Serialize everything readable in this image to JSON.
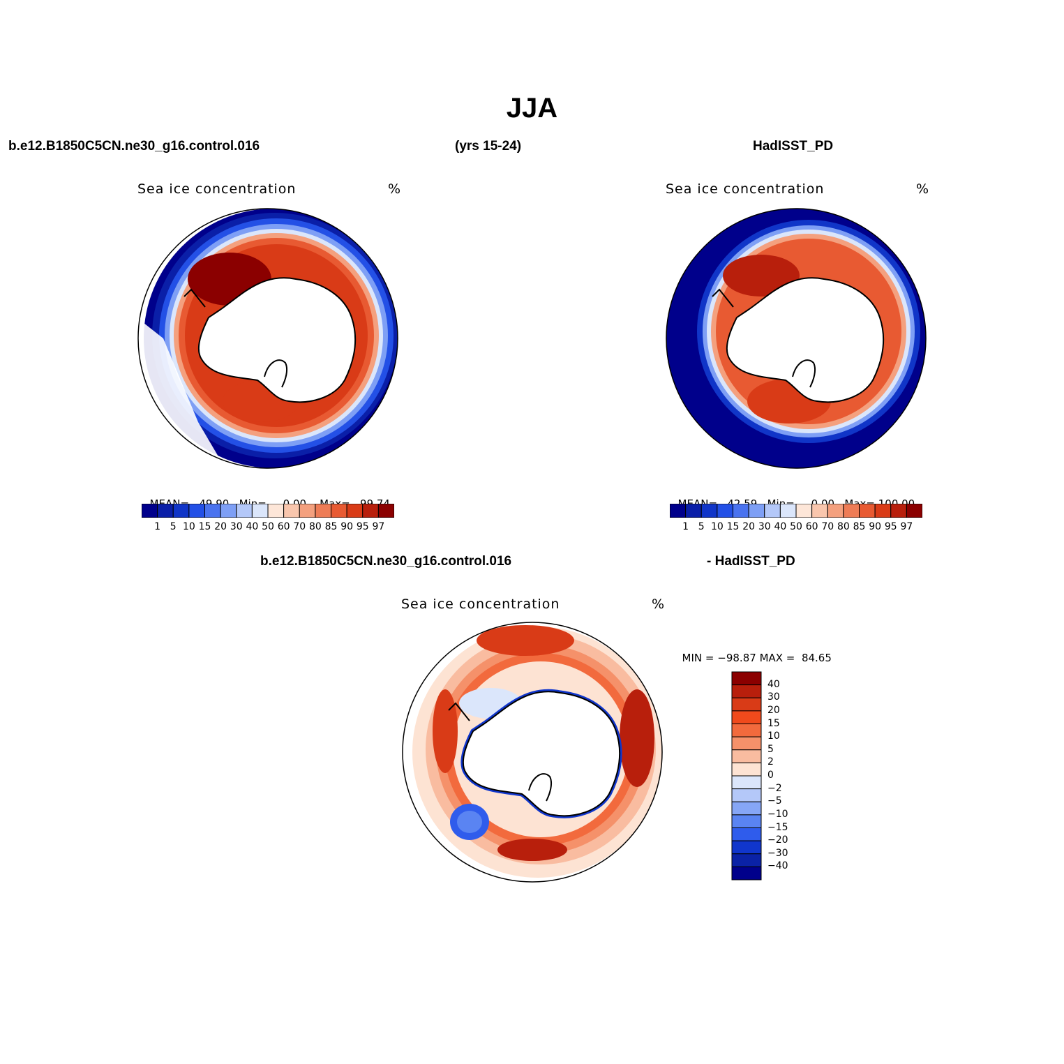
{
  "figure": {
    "title": "JJA",
    "case_name": "b.e12.B1850C5CN.ne30_g16.control.016",
    "years": "(yrs 15-24)",
    "obs_name": "HadISST_PD",
    "diff_case": "b.e12.B1850C5CN.ne30_g16.control.016",
    "diff_obs": "- HadISST_PD"
  },
  "panels": [
    {
      "variable": "Sea ice concentration",
      "units": "%",
      "mean_label": "MEAN=",
      "mean": "49.90",
      "min_label": "Min=",
      "min": "0.00",
      "max_label": "Max=",
      "max": "99.74"
    },
    {
      "variable": "Sea ice concentration",
      "units": "%",
      "mean_label": "MEAN=",
      "mean": "42.59",
      "min_label": "Min=",
      "min": "0.00",
      "max_label": "Max=",
      "max": "100.00"
    },
    {
      "variable": "Sea ice concentration",
      "units": "%",
      "min_label": "MIN =",
      "min": "−98.87",
      "max_label": "MAX =",
      "max": "84.65"
    }
  ],
  "colorbar_main": {
    "labels": [
      "1",
      "5",
      "10",
      "15",
      "20",
      "30",
      "40",
      "50",
      "60",
      "70",
      "80",
      "85",
      "90",
      "95",
      "97"
    ],
    "colors": [
      "#00008b",
      "#0a1fa8",
      "#1035c8",
      "#2350e6",
      "#4a73ef",
      "#7e9ff5",
      "#b4c8f9",
      "#dbe6fb",
      "#fde6d8",
      "#f9c6ad",
      "#f4a07e",
      "#ee7c56",
      "#e85a32",
      "#d93b17",
      "#b81f0c",
      "#8b0000"
    ]
  },
  "colorbar_diff": {
    "labels": [
      "40",
      "30",
      "20",
      "15",
      "10",
      "5",
      "2",
      "0",
      "−2",
      "−5",
      "−10",
      "−15",
      "−20",
      "−30",
      "−40"
    ],
    "colors": [
      "#8b0000",
      "#b81f0c",
      "#d93b17",
      "#f04a1c",
      "#f26a3d",
      "#f5916a",
      "#f9bca0",
      "#fde3d3",
      "#dbe6fb",
      "#b4c8f9",
      "#86a6f6",
      "#5a84f2",
      "#2f5cec",
      "#1036cc",
      "#0a22a6",
      "#00008b"
    ]
  },
  "chart_data": [
    {
      "type": "heatmap",
      "title": "Sea ice concentration",
      "units": "%",
      "projection": "south polar stereographic",
      "stats": {
        "mean": 49.9,
        "min": 0.0,
        "max": 99.74
      },
      "levels": [
        1,
        5,
        10,
        15,
        20,
        30,
        40,
        50,
        60,
        70,
        80,
        85,
        90,
        95,
        97
      ]
    },
    {
      "type": "heatmap",
      "title": "Sea ice concentration",
      "units": "%",
      "projection": "south polar stereographic",
      "stats": {
        "mean": 42.59,
        "min": 0.0,
        "max": 100.0
      },
      "levels": [
        1,
        5,
        10,
        15,
        20,
        30,
        40,
        50,
        60,
        70,
        80,
        85,
        90,
        95,
        97
      ]
    },
    {
      "type": "heatmap",
      "title": "Sea ice concentration",
      "units": "%",
      "projection": "south polar stereographic",
      "stats": {
        "min": -98.87,
        "max": 84.65
      },
      "levels": [
        40,
        30,
        20,
        15,
        10,
        5,
        2,
        0,
        -2,
        -5,
        -10,
        -15,
        -20,
        -30,
        -40
      ]
    }
  ]
}
